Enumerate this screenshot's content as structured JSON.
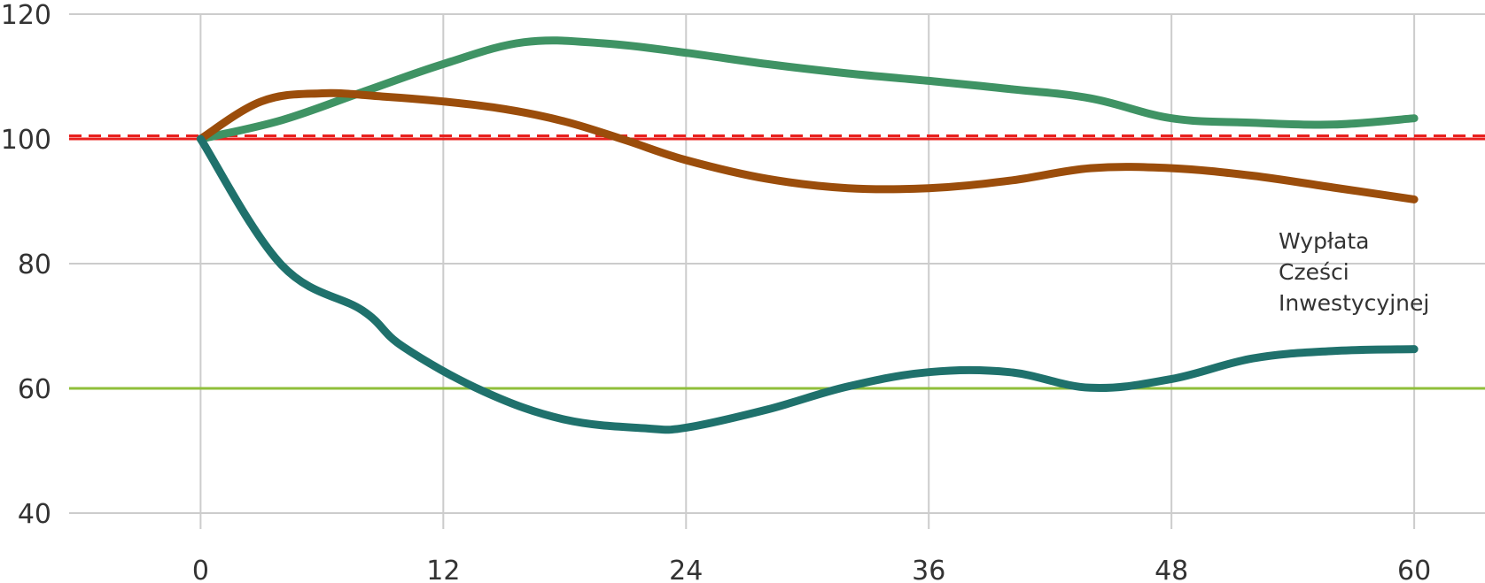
{
  "chart_data": {
    "type": "line",
    "title": "",
    "xlabel": "",
    "ylabel": "",
    "xlim": [
      -6.5,
      63.5
    ],
    "ylim": [
      40,
      120
    ],
    "xticks": [
      0,
      12,
      24,
      36,
      48,
      60
    ],
    "yticks": [
      40,
      60,
      80,
      100,
      120
    ],
    "grid": true,
    "reference_lines": [
      {
        "y": 100,
        "color": "#e8201e",
        "style": "solid"
      },
      {
        "y": 100.5,
        "color": "#e8201e",
        "style": "dashed"
      },
      {
        "y": 60,
        "color": "#8fbf3a",
        "style": "solid"
      }
    ],
    "series": [
      {
        "color": "#3f9364",
        "x": [
          0,
          4,
          8,
          12,
          16,
          20,
          24,
          28,
          32,
          36,
          40,
          44,
          48,
          52,
          56,
          60
        ],
        "y": [
          100,
          103,
          107.5,
          112,
          115.5,
          115.3,
          113.8,
          112,
          110.5,
          109.3,
          108,
          106.5,
          103.3,
          102.6,
          102.3,
          103.3
        ]
      },
      {
        "color": "#9b4d0b",
        "x": [
          0,
          3,
          6,
          9,
          12,
          15,
          18,
          21,
          24,
          28,
          32,
          36,
          40,
          44,
          48,
          52,
          56,
          60
        ],
        "y": [
          100,
          106,
          107.3,
          106.8,
          106,
          104.8,
          102.8,
          99.8,
          96.6,
          93.6,
          92.1,
          92.1,
          93.3,
          95.3,
          95.3,
          94.1,
          92.2,
          90.3
        ]
      },
      {
        "color": "#1f716c",
        "x": [
          0,
          4,
          8,
          10,
          14,
          18,
          22,
          24,
          28,
          32,
          36,
          40,
          44,
          48,
          52,
          56,
          60
        ],
        "y": [
          100,
          79.8,
          72.5,
          66.7,
          59.5,
          55,
          53.6,
          53.7,
          56.6,
          60.3,
          62.6,
          62.6,
          60.1,
          61.5,
          64.8,
          66,
          66.3
        ]
      }
    ],
    "annotation": {
      "lines": [
        "Wypłata",
        "Cześci",
        "Inwestycyjnej"
      ]
    }
  }
}
